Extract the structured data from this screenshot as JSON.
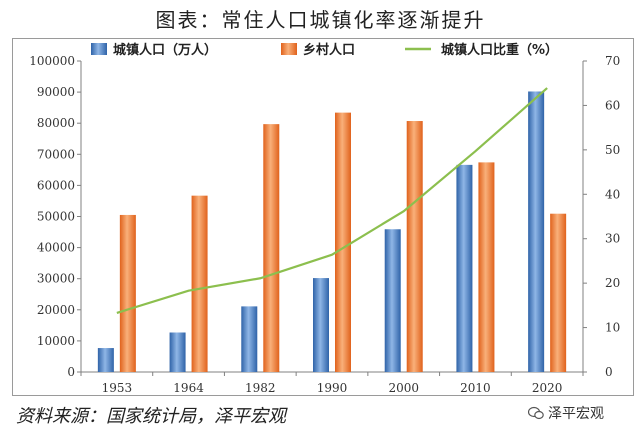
{
  "title": "图表：常住人口城镇化率逐渐提升",
  "source": "资料来源：国家统计局，泽平宏观",
  "watermark": "泽平宏观",
  "chart_data": {
    "type": "bar",
    "categories": [
      "1953",
      "1964",
      "1982",
      "1990",
      "2000",
      "2010",
      "2020"
    ],
    "series": [
      {
        "name": "城镇人口（万人）",
        "type": "bar",
        "axis": "left",
        "color": "#4a7fc0",
        "values": [
          7700,
          12700,
          21100,
          30200,
          45900,
          66600,
          90200
        ]
      },
      {
        "name": "乡村人口",
        "type": "bar",
        "axis": "left",
        "color": "#f07f3c",
        "values": [
          50500,
          56700,
          79700,
          83400,
          80700,
          67400,
          50900
        ]
      },
      {
        "name": "城镇人口比重（%）",
        "type": "line",
        "axis": "right",
        "color": "#8cbf4e",
        "values": [
          13.3,
          18.3,
          21.1,
          26.4,
          36.2,
          49.7,
          63.9
        ]
      }
    ],
    "ylim": [
      0,
      100000
    ],
    "yticks": [
      0,
      10000,
      20000,
      30000,
      40000,
      50000,
      60000,
      70000,
      80000,
      90000,
      100000
    ],
    "y2lim": [
      0,
      70
    ],
    "y2ticks": [
      0,
      10,
      20,
      30,
      40,
      50,
      60,
      70
    ],
    "grid": false,
    "legend_position": "top"
  }
}
